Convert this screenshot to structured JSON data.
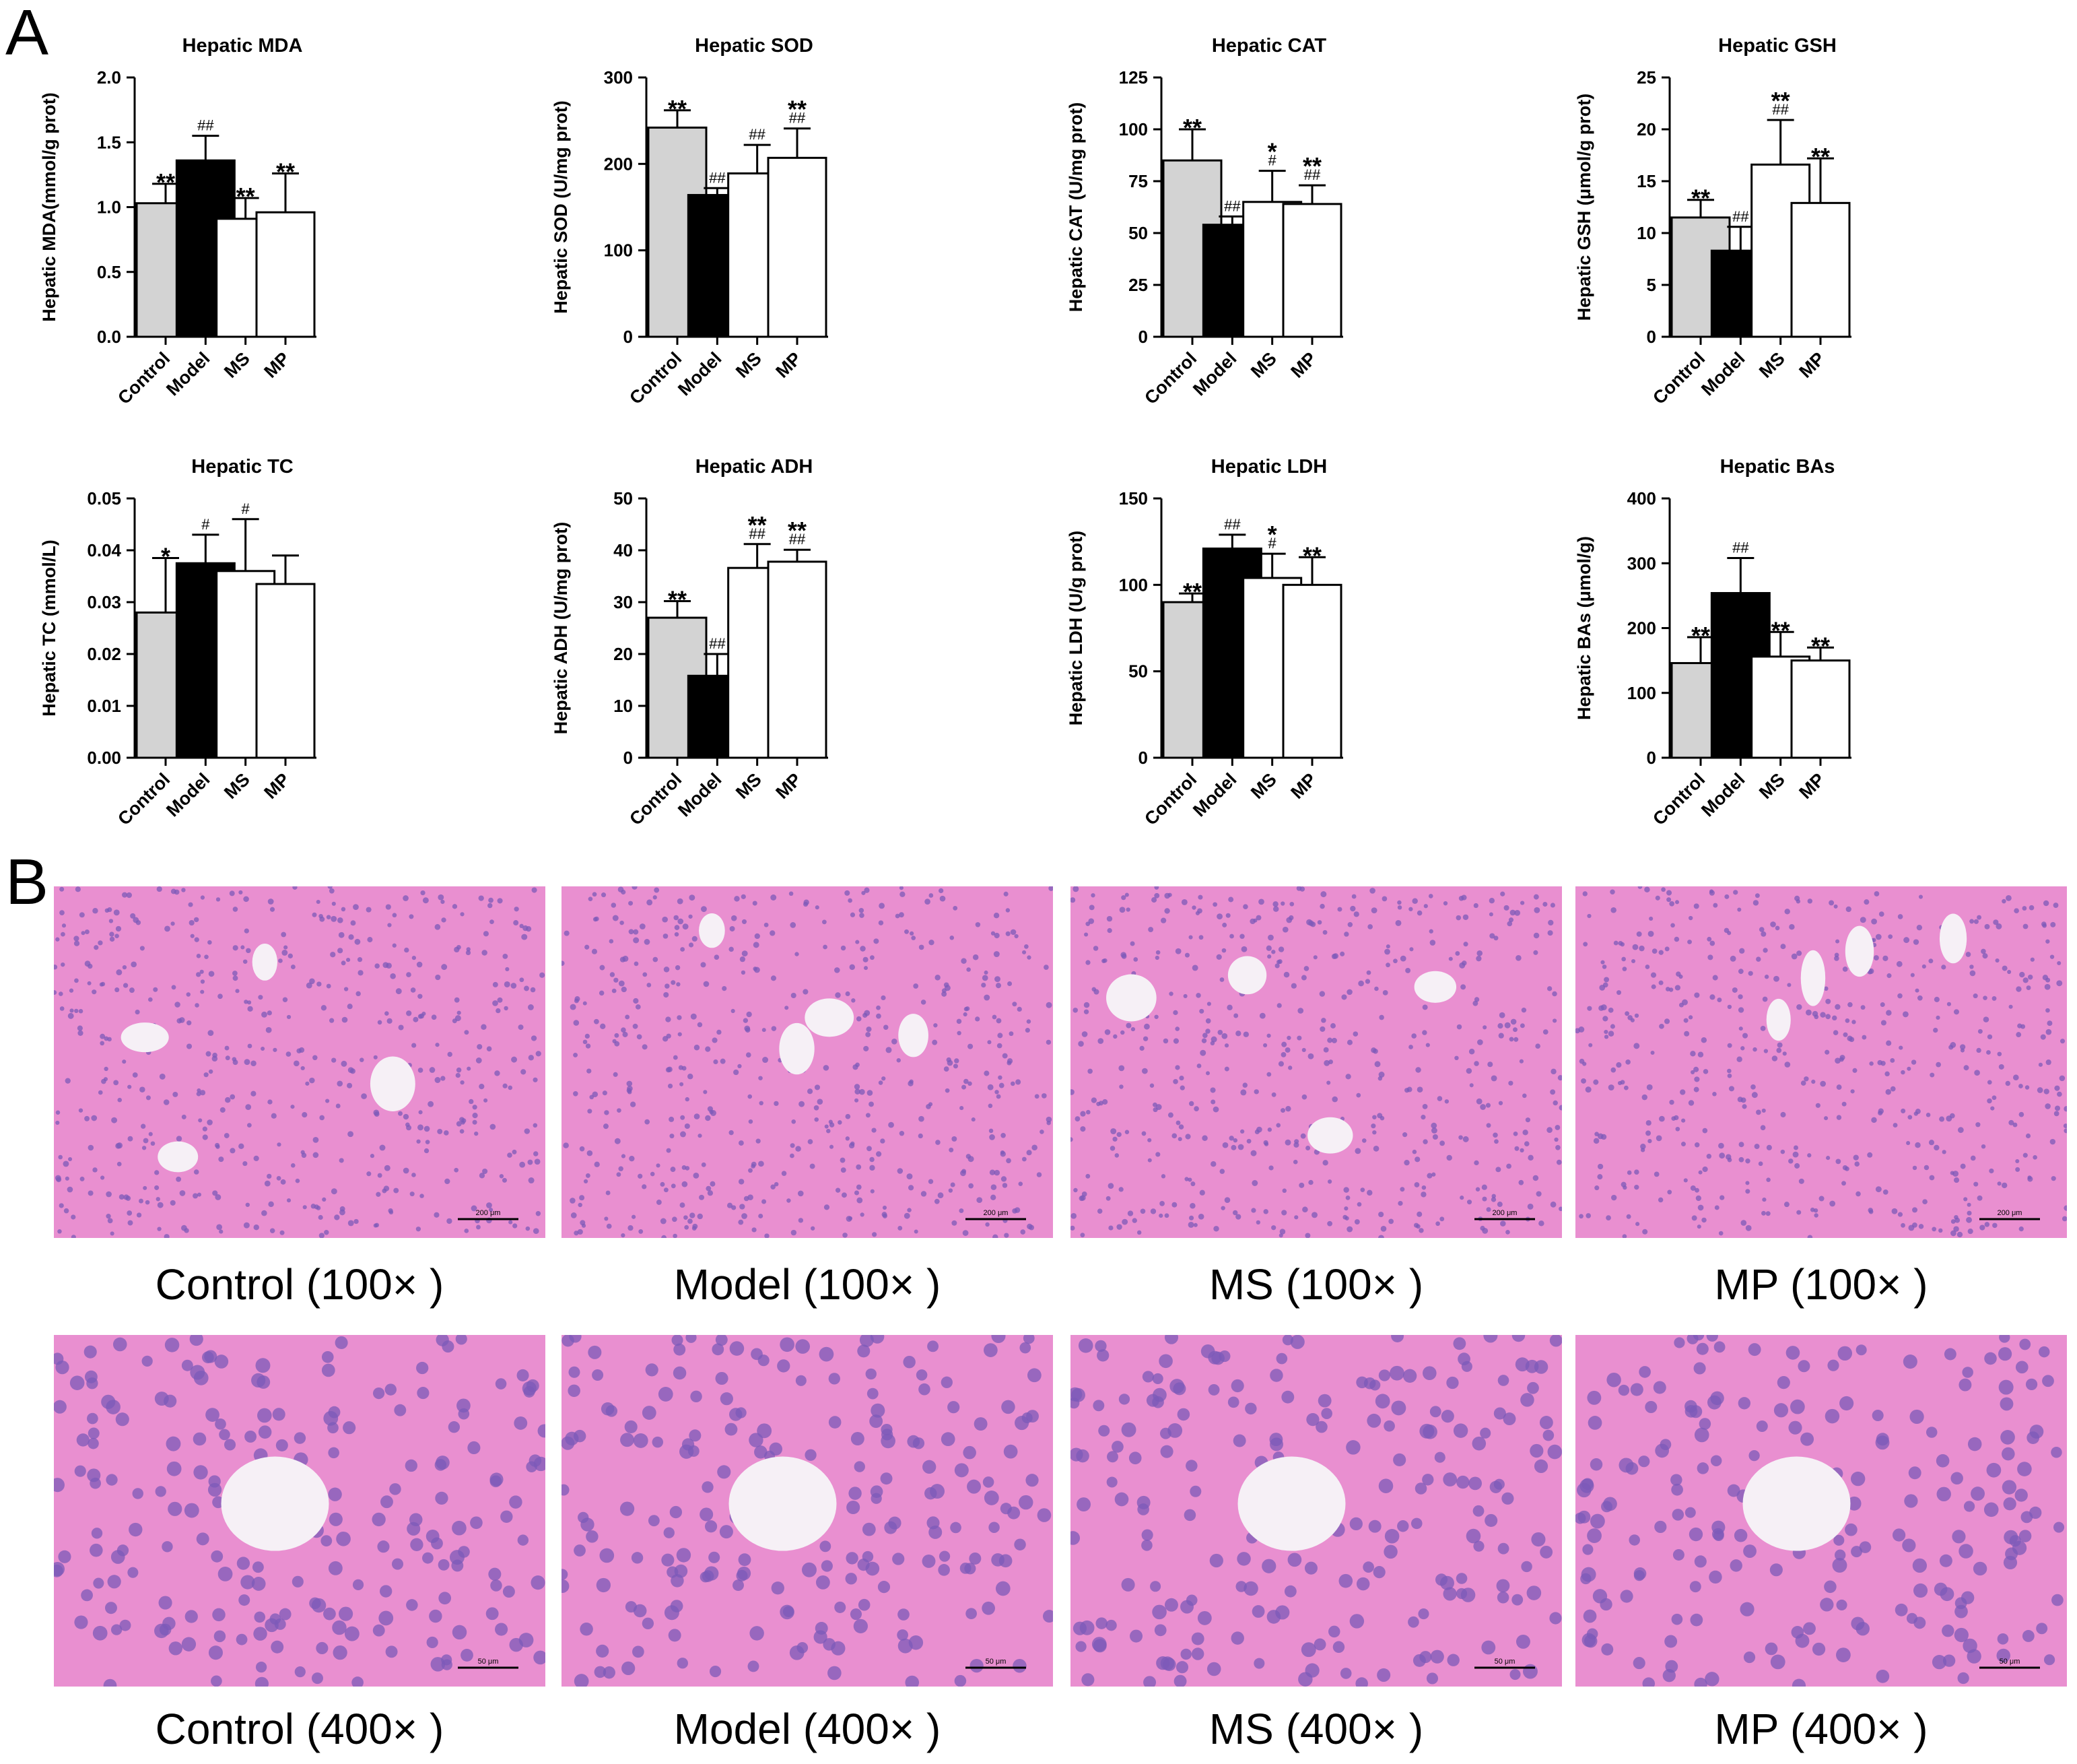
{
  "panel_labels": {
    "a": "A",
    "b": "B"
  },
  "colors": {
    "control": "#d3d3d3",
    "model": "#000000",
    "treatment": "#ffffff",
    "tissue": "#e98fd0"
  },
  "chart_data": [
    {
      "type": "bar",
      "title": "Hepatic MDA",
      "ylabel": "Hepatic MDA(mmol/g prot)",
      "categories": [
        "Control",
        "Model",
        "MS",
        "MP"
      ],
      "ylim": [
        0,
        2.0
      ],
      "yticks": [
        "0.0",
        "0.5",
        "1.0",
        "1.5",
        "2.0"
      ],
      "values": [
        1.03,
        1.36,
        0.91,
        0.96
      ],
      "errors": [
        0.15,
        0.19,
        0.16,
        0.3
      ],
      "annotations": [
        [
          "**"
        ],
        [
          "##"
        ],
        [
          "**"
        ],
        [
          "**"
        ]
      ]
    },
    {
      "type": "bar",
      "title": "Hepatic SOD",
      "ylabel": "Hepatic SOD (U/mg prot)",
      "categories": [
        "Control",
        "Model",
        "MS",
        "MP"
      ],
      "ylim": [
        0,
        300
      ],
      "yticks": [
        "0",
        "100",
        "200",
        "300"
      ],
      "values": [
        242,
        164,
        189,
        207
      ],
      "errors": [
        20,
        8,
        33,
        34
      ],
      "annotations": [
        [
          "**"
        ],
        [
          "##"
        ],
        [
          "##"
        ],
        [
          "**",
          "##"
        ]
      ]
    },
    {
      "type": "bar",
      "title": "Hepatic CAT",
      "ylabel": "Hepatic CAT (U/mg prot)",
      "categories": [
        "Control",
        "Model",
        "MS",
        "MP"
      ],
      "ylim": [
        0,
        125
      ],
      "yticks": [
        "0",
        "25",
        "50",
        "75",
        "100",
        "125"
      ],
      "values": [
        85,
        54,
        65,
        64
      ],
      "errors": [
        15,
        4,
        15,
        9
      ],
      "annotations": [
        [
          "**"
        ],
        [
          "##"
        ],
        [
          "*",
          "#"
        ],
        [
          "**",
          "##"
        ]
      ]
    },
    {
      "type": "bar",
      "title": "Hepatic GSH",
      "ylabel": "Hepatic GSH (μmol/g prot)",
      "categories": [
        "Control",
        "Model",
        "MS",
        "MP"
      ],
      "ylim": [
        0,
        25
      ],
      "yticks": [
        "0",
        "5",
        "10",
        "15",
        "20",
        "25"
      ],
      "values": [
        11.5,
        8.3,
        16.6,
        12.9
      ],
      "errors": [
        1.7,
        2.3,
        4.3,
        4.3
      ],
      "annotations": [
        [
          "**"
        ],
        [
          "##"
        ],
        [
          "**",
          "##"
        ],
        [
          "**"
        ]
      ]
    },
    {
      "type": "bar",
      "title": "Hepatic TC",
      "ylabel": "Hepatic TC (mmol/L)",
      "categories": [
        "Control",
        "Model",
        "MS",
        "MP"
      ],
      "ylim": [
        0,
        0.05
      ],
      "yticks": [
        "0.00",
        "0.01",
        "0.02",
        "0.03",
        "0.04",
        "0.05"
      ],
      "values": [
        0.028,
        0.0375,
        0.036,
        0.0335
      ],
      "errors": [
        0.0105,
        0.0055,
        0.01,
        0.0055
      ],
      "annotations": [
        [
          "*"
        ],
        [
          "#"
        ],
        [
          "#"
        ],
        []
      ]
    },
    {
      "type": "bar",
      "title": "Hepatic ADH",
      "ylabel": "Hepatic ADH (U/mg prot)",
      "categories": [
        "Control",
        "Model",
        "MS",
        "MP"
      ],
      "ylim": [
        0,
        50
      ],
      "yticks": [
        "0",
        "10",
        "20",
        "30",
        "40",
        "50"
      ],
      "values": [
        27,
        15.8,
        36.6,
        37.8
      ],
      "errors": [
        3.2,
        4.2,
        4.6,
        2.3
      ],
      "annotations": [
        [
          "**"
        ],
        [
          "##"
        ],
        [
          "**",
          "##"
        ],
        [
          "**",
          "##"
        ]
      ]
    },
    {
      "type": "bar",
      "title": "Hepatic LDH",
      "ylabel": "Hepatic LDH (U/g prot)",
      "categories": [
        "Control",
        "Model",
        "MS",
        "MP"
      ],
      "ylim": [
        0,
        150
      ],
      "yticks": [
        "0",
        "50",
        "100",
        "150"
      ],
      "values": [
        90,
        121,
        104,
        100
      ],
      "errors": [
        5,
        8,
        14,
        16
      ],
      "annotations": [
        [
          "**"
        ],
        [
          "##"
        ],
        [
          "*",
          "#"
        ],
        [
          "**"
        ]
      ]
    },
    {
      "type": "bar",
      "title": "Hepatic BAs",
      "ylabel": "Hepatic BAs (μmol/g)",
      "categories": [
        "Control",
        "Model",
        "MS",
        "MP"
      ],
      "ylim": [
        0,
        400
      ],
      "yticks": [
        "0",
        "100",
        "200",
        "300",
        "400"
      ],
      "values": [
        146,
        254,
        156,
        150
      ],
      "errors": [
        40,
        54,
        38,
        20
      ],
      "annotations": [
        [
          "**"
        ],
        [
          "##"
        ],
        [
          "**"
        ],
        [
          "**"
        ]
      ]
    }
  ],
  "micrographs": [
    {
      "caption": "Control (100× )",
      "scale": "200 μm"
    },
    {
      "caption": "Model (100× )",
      "scale": "200 μm"
    },
    {
      "caption": "MS (100× )",
      "scale": "200 μm"
    },
    {
      "caption": "MP (100× )",
      "scale": "200 μm"
    },
    {
      "caption": "Control (400× )",
      "scale": "50 μm"
    },
    {
      "caption": "Model (400× )",
      "scale": "50 μm"
    },
    {
      "caption": "MS (400× )",
      "scale": "50 μm"
    },
    {
      "caption": "MP (400× )",
      "scale": "50 μm"
    }
  ]
}
